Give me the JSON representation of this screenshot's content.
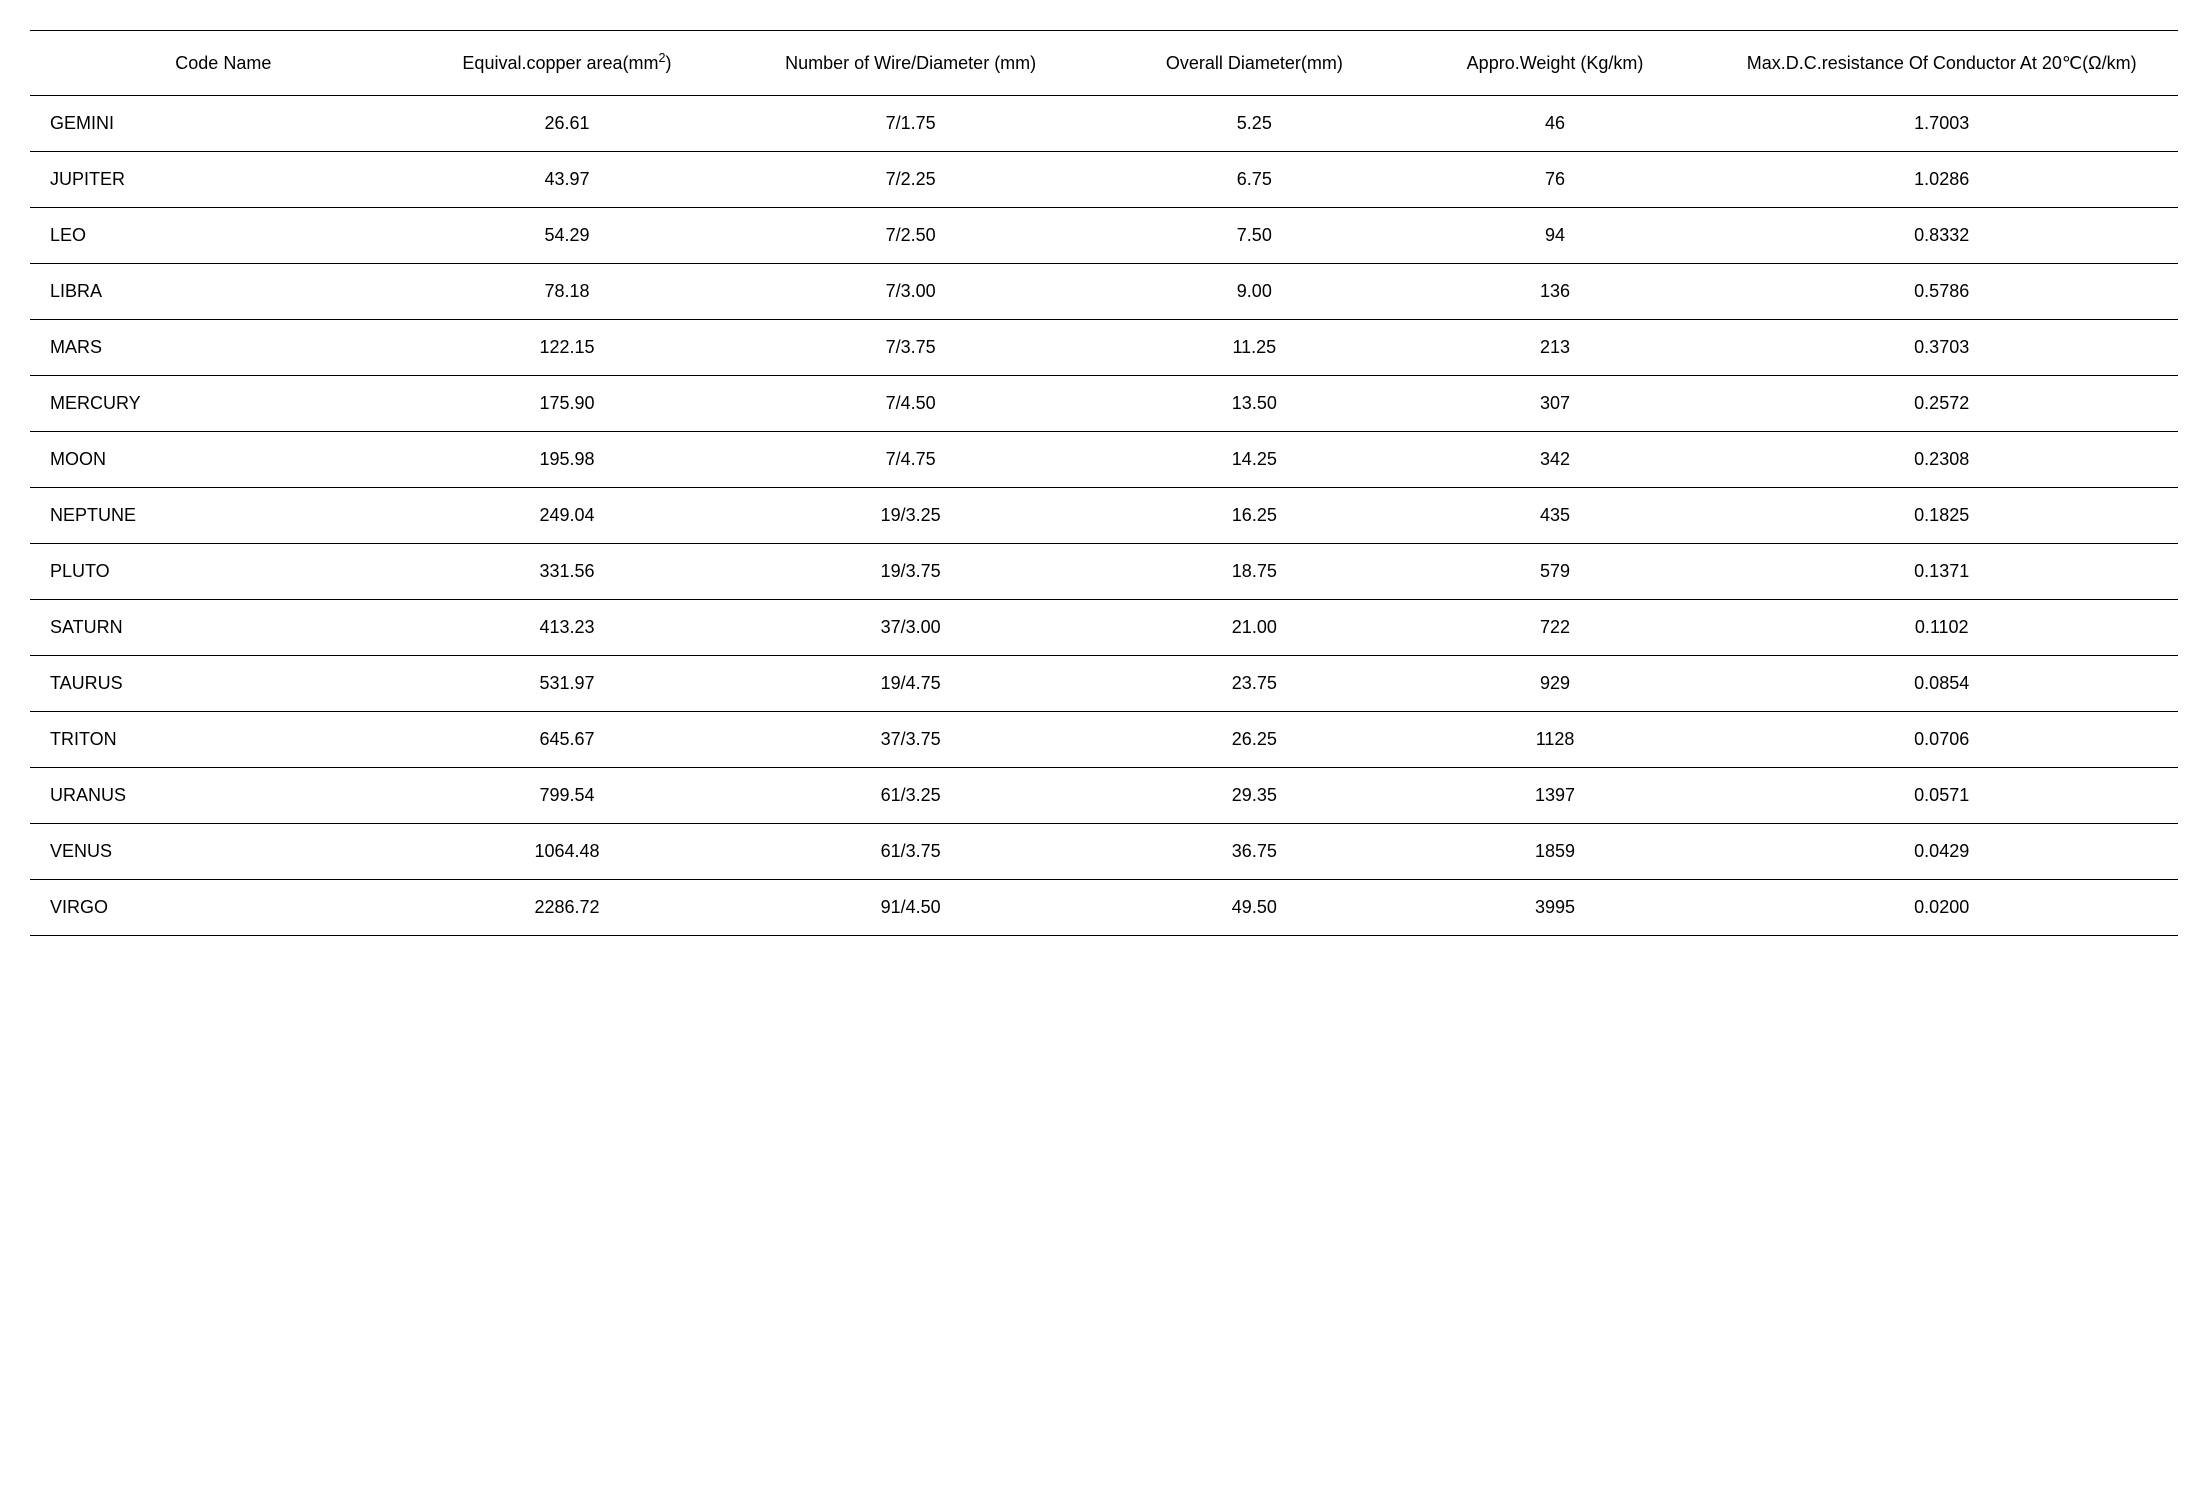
{
  "table": {
    "columns": [
      {
        "key": "code",
        "label": "Code Name",
        "class": "col-code"
      },
      {
        "key": "area",
        "label_html": "Equival.copper area(mm<span class=\"sup\">2</span>)",
        "class": "col-area"
      },
      {
        "key": "wire",
        "label": "Number of Wire/Diameter (mm)",
        "class": "col-wire"
      },
      {
        "key": "diameter",
        "label": "Overall Diameter(mm)",
        "class": "col-diameter"
      },
      {
        "key": "weight",
        "label": "Appro.Weight (Kg/km)",
        "class": "col-weight"
      },
      {
        "key": "resistance",
        "label": "Max.D.C.resistance Of Conductor At 20℃(Ω/km)",
        "class": "col-resistance"
      }
    ],
    "rows": [
      {
        "code": "GEMINI",
        "area": "26.61",
        "wire": "7/1.75",
        "diameter": "5.25",
        "weight": "46",
        "resistance": "1.7003"
      },
      {
        "code": "JUPITER",
        "area": "43.97",
        "wire": "7/2.25",
        "diameter": "6.75",
        "weight": "76",
        "resistance": "1.0286"
      },
      {
        "code": "LEO",
        "area": "54.29",
        "wire": "7/2.50",
        "diameter": "7.50",
        "weight": "94",
        "resistance": "0.8332"
      },
      {
        "code": "LIBRA",
        "area": "78.18",
        "wire": "7/3.00",
        "diameter": "9.00",
        "weight": "136",
        "resistance": "0.5786"
      },
      {
        "code": "MARS",
        "area": "122.15",
        "wire": "7/3.75",
        "diameter": "11.25",
        "weight": "213",
        "resistance": "0.3703"
      },
      {
        "code": "MERCURY",
        "area": "175.90",
        "wire": "7/4.50",
        "diameter": "13.50",
        "weight": "307",
        "resistance": "0.2572"
      },
      {
        "code": "MOON",
        "area": "195.98",
        "wire": "7/4.75",
        "diameter": "14.25",
        "weight": "342",
        "resistance": "0.2308"
      },
      {
        "code": "NEPTUNE",
        "area": "249.04",
        "wire": "19/3.25",
        "diameter": "16.25",
        "weight": "435",
        "resistance": "0.1825"
      },
      {
        "code": "PLUTO",
        "area": "331.56",
        "wire": "19/3.75",
        "diameter": "18.75",
        "weight": "579",
        "resistance": "0.1371"
      },
      {
        "code": "SATURN",
        "area": "413.23",
        "wire": "37/3.00",
        "diameter": "21.00",
        "weight": "722",
        "resistance": "0.1102"
      },
      {
        "code": "TAURUS",
        "area": "531.97",
        "wire": "19/4.75",
        "diameter": "23.75",
        "weight": "929",
        "resistance": "0.0854"
      },
      {
        "code": "TRITON",
        "area": "645.67",
        "wire": "37/3.75",
        "diameter": "26.25",
        "weight": "1128",
        "resistance": "0.0706"
      },
      {
        "code": "URANUS",
        "area": "799.54",
        "wire": "61/3.25",
        "diameter": "29.35",
        "weight": "1397",
        "resistance": "0.0571"
      },
      {
        "code": "VENUS",
        "area": "1064.48",
        "wire": "61/3.75",
        "diameter": "36.75",
        "weight": "1859",
        "resistance": "0.0429"
      },
      {
        "code": "VIRGO",
        "area": "2286.72",
        "wire": "91/4.50",
        "diameter": "49.50",
        "weight": "3995",
        "resistance": "0.0200"
      }
    ],
    "header_fontsize": 18,
    "cell_fontsize": 18,
    "border_color": "#000000",
    "background_color": "#ffffff"
  }
}
